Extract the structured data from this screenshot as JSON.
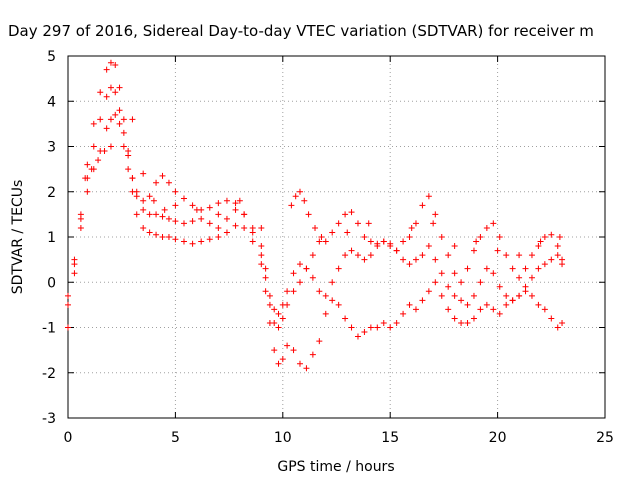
{
  "chart_data": {
    "type": "scatter",
    "title": "Day 297 of 2016, Sidereal Day-to-day VTEC variation (SDTVAR) for receiver m",
    "xlabel": "GPS time / hours",
    "ylabel": "SDTVAR / TECUs",
    "xlim": [
      0,
      25
    ],
    "ylim": [
      -3,
      5
    ],
    "xticks": [
      "0",
      "5",
      "10",
      "15",
      "20",
      "25"
    ],
    "yticks": [
      "-3",
      "-2",
      "-1",
      "0",
      "1",
      "2",
      "3",
      "4",
      "5"
    ],
    "grid": true,
    "marker": "plus",
    "color": "#ff0000",
    "series": [
      {
        "x": [
          0.0,
          0.3,
          0.6,
          0.9,
          1.2,
          1.5,
          1.8,
          2.0,
          2.2,
          2.4,
          2.6,
          2.8,
          3.0,
          3.2,
          3.5,
          3.8,
          4.1,
          4.4,
          4.7,
          5.0,
          5.4,
          5.8,
          6.2,
          6.6,
          7.0,
          7.4,
          7.8,
          8.2,
          8.6,
          9.0,
          9.2,
          9.4,
          9.6,
          9.8,
          10.0,
          10.2,
          10.5,
          10.8,
          11.1,
          11.4,
          11.7,
          12.0,
          12.3,
          12.6,
          12.9,
          13.2,
          13.5,
          13.8,
          14.1,
          14.4,
          14.7,
          15.0,
          15.3,
          15.6,
          15.9,
          16.2,
          16.5,
          16.8,
          17.1,
          17.4,
          17.7,
          18.0,
          18.3,
          18.6,
          18.9,
          19.2,
          19.5,
          19.8,
          20.1,
          20.4,
          20.7,
          21.0,
          21.3,
          21.6,
          21.9,
          22.2,
          22.5,
          22.8,
          23.0
        ],
        "y": [
          -1.0,
          0.2,
          1.5,
          2.6,
          3.5,
          4.2,
          4.7,
          4.85,
          4.8,
          4.3,
          3.6,
          2.9,
          2.3,
          2.0,
          1.8,
          1.9,
          2.2,
          2.35,
          2.2,
          2.0,
          1.85,
          1.7,
          1.6,
          1.65,
          1.75,
          1.8,
          1.75,
          1.5,
          1.2,
          0.8,
          0.3,
          -0.3,
          -0.6,
          -0.7,
          -0.5,
          -0.2,
          0.2,
          0.4,
          0.3,
          0.6,
          0.9,
          0.9,
          1.1,
          1.3,
          1.5,
          1.55,
          1.3,
          1.0,
          0.9,
          0.85,
          0.9,
          0.8,
          0.7,
          0.9,
          1.0,
          1.3,
          1.7,
          1.9,
          1.5,
          1.0,
          0.6,
          0.2,
          0.0,
          0.3,
          0.7,
          1.0,
          1.2,
          1.3,
          1.0,
          0.6,
          0.3,
          0.1,
          0.3,
          0.6,
          0.8,
          1.0,
          1.05,
          0.8,
          0.5
        ]
      },
      {
        "x": [
          0.0,
          0.3,
          0.6,
          0.9,
          1.2,
          1.5,
          1.8,
          2.0,
          2.2,
          2.4,
          2.6,
          2.8,
          3.0,
          3.2,
          3.5,
          3.8,
          4.1,
          4.4,
          4.7,
          5.0,
          5.4,
          5.8,
          6.2,
          6.6,
          7.0,
          7.4,
          7.8,
          8.2,
          8.6,
          9.0,
          9.2,
          9.4,
          9.6,
          9.8,
          10.0,
          10.2,
          10.5,
          10.8,
          11.1,
          11.4,
          11.7,
          12.0,
          12.3,
          12.6,
          12.9,
          13.2,
          13.5,
          13.8,
          14.1,
          14.4,
          14.7,
          15.0,
          15.3,
          15.6,
          15.9,
          16.2,
          16.5,
          16.8,
          17.1,
          17.4,
          17.7,
          18.0,
          18.3,
          18.6,
          18.9,
          19.2,
          19.5,
          19.8,
          20.1,
          20.4,
          20.7,
          21.0,
          21.3,
          21.6,
          21.9,
          22.2,
          22.5,
          22.8,
          23.0
        ],
        "y": [
          -0.5,
          0.4,
          1.4,
          2.3,
          3.0,
          3.6,
          4.1,
          4.3,
          4.2,
          3.8,
          3.3,
          2.8,
          2.3,
          1.9,
          1.6,
          1.5,
          1.5,
          1.45,
          1.4,
          1.35,
          1.3,
          1.35,
          1.4,
          1.3,
          1.2,
          1.4,
          1.6,
          1.5,
          1.1,
          0.6,
          0.1,
          -0.5,
          -0.9,
          -1.0,
          -0.8,
          -0.5,
          -0.2,
          0.0,
          0.3,
          0.1,
          -0.2,
          -0.3,
          0.0,
          0.3,
          0.6,
          0.7,
          0.6,
          0.5,
          0.6,
          0.8,
          0.9,
          0.85,
          0.7,
          0.5,
          0.4,
          0.5,
          0.6,
          0.8,
          0.5,
          0.2,
          -0.1,
          -0.3,
          -0.4,
          -0.5,
          -0.3,
          0.0,
          0.3,
          0.2,
          -0.1,
          -0.3,
          -0.4,
          -0.3,
          -0.1,
          0.1,
          0.3,
          0.4,
          0.5,
          0.6,
          0.4
        ]
      },
      {
        "x": [
          0.0,
          0.3,
          0.6,
          0.9,
          1.2,
          1.5,
          1.8,
          2.0,
          2.2,
          2.4,
          2.6,
          2.8,
          3.0,
          3.2,
          3.5,
          3.8,
          4.1,
          4.4,
          4.7,
          5.0,
          5.4,
          5.8,
          6.2,
          6.6,
          7.0,
          7.4,
          7.8,
          8.2,
          8.6,
          9.0,
          9.2,
          9.4,
          9.6,
          9.8,
          10.0,
          10.2,
          10.5,
          10.8,
          11.1,
          11.4,
          11.7,
          12.0,
          12.3,
          12.6,
          12.9,
          13.2,
          13.5,
          13.8,
          14.1,
          14.4,
          14.7,
          15.0,
          15.3,
          15.6,
          15.9,
          16.2,
          16.5,
          16.8,
          17.1,
          17.4,
          17.7,
          18.0,
          18.3,
          18.6,
          18.9,
          19.2,
          19.5,
          19.8,
          20.1,
          20.4,
          20.7,
          21.0,
          21.3,
          21.6,
          21.9,
          22.2,
          22.5,
          22.8,
          23.0
        ],
        "y": [
          -0.3,
          0.5,
          1.2,
          2.0,
          2.5,
          2.9,
          3.4,
          3.6,
          3.7,
          3.5,
          3.0,
          2.5,
          2.0,
          1.5,
          1.2,
          1.1,
          1.05,
          1.0,
          1.0,
          0.95,
          0.9,
          0.85,
          0.9,
          0.95,
          1.0,
          1.1,
          1.25,
          1.2,
          0.9,
          0.4,
          -0.2,
          -0.9,
          -1.5,
          -1.8,
          -1.7,
          -1.4,
          -1.5,
          -1.8,
          -1.9,
          -1.6,
          -1.3,
          -0.7,
          -0.4,
          -0.5,
          -0.8,
          -1.0,
          -1.2,
          -1.1,
          -1.0,
          -1.0,
          -0.9,
          -1.0,
          -0.9,
          -0.7,
          -0.5,
          -0.6,
          -0.4,
          -0.2,
          0.0,
          -0.3,
          -0.6,
          -0.8,
          -0.9,
          -0.9,
          -0.8,
          -0.6,
          -0.5,
          -0.6,
          -0.7,
          -0.5,
          -0.4,
          -0.3,
          -0.2,
          -0.3,
          -0.5,
          -0.6,
          -0.8,
          -1.0,
          -0.9
        ]
      },
      {
        "x": [
          0.8,
          1.1,
          1.4,
          1.7,
          2.0,
          3.0,
          3.5,
          4.0,
          4.5,
          5.0,
          6.0,
          7.0,
          8.0,
          9.0,
          10.4,
          10.6,
          10.8,
          11.0,
          11.2,
          11.5,
          11.8,
          13.0,
          14.0,
          16.0,
          17.0,
          18.0,
          19.0,
          20.0,
          21.0,
          22.0,
          22.9
        ],
        "y": [
          2.3,
          2.5,
          2.7,
          2.9,
          3.0,
          3.6,
          2.4,
          1.8,
          1.6,
          1.7,
          1.6,
          1.5,
          1.8,
          1.2,
          1.7,
          1.9,
          2.0,
          1.8,
          1.5,
          1.2,
          1.0,
          1.1,
          1.3,
          1.2,
          1.3,
          0.8,
          0.9,
          0.7,
          0.6,
          0.9,
          1.0
        ]
      }
    ]
  }
}
